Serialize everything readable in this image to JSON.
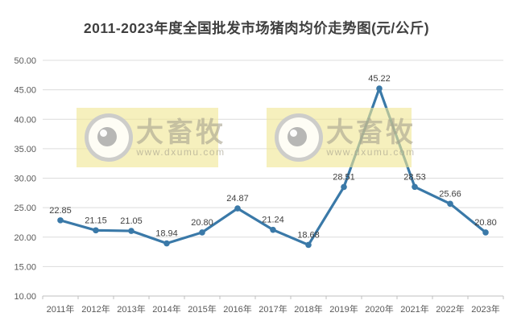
{
  "chart": {
    "title": "2011-2023年度全国批发市场猪肉均价走势图(元/公斤)"
  },
  "chart_data": {
    "type": "line",
    "title": "2011-2023年度全国批发市场猪肉均价走势图(元/公斤)",
    "categories": [
      "2011年",
      "2012年",
      "2013年",
      "2014年",
      "2015年",
      "2016年",
      "2017年",
      "2018年",
      "2019年",
      "2020年",
      "2021年",
      "2022年",
      "2023年"
    ],
    "values": [
      22.85,
      21.15,
      21.05,
      18.94,
      20.8,
      24.87,
      21.24,
      18.68,
      28.51,
      45.22,
      28.53,
      25.66,
      20.8
    ],
    "xlabel": "",
    "ylabel": "",
    "ylim": [
      10,
      50
    ],
    "yticks": [
      {
        "value": 10,
        "label": "10.00"
      },
      {
        "value": 15,
        "label": "15.00"
      },
      {
        "value": 20,
        "label": "20.00"
      },
      {
        "value": 25,
        "label": "25.00"
      },
      {
        "value": 30,
        "label": "30.00"
      },
      {
        "value": 35,
        "label": "35.00"
      },
      {
        "value": 40,
        "label": "40.00"
      },
      {
        "value": 45,
        "label": "45.00"
      },
      {
        "value": 50,
        "label": "50.00"
      }
    ],
    "grid": true,
    "legend_position": "none",
    "line_color": "#3a79a8",
    "data_labels": true
  },
  "watermark": {
    "brand": "大畜牧",
    "url": "www.dxumu.com",
    "background": "#f0e794"
  }
}
